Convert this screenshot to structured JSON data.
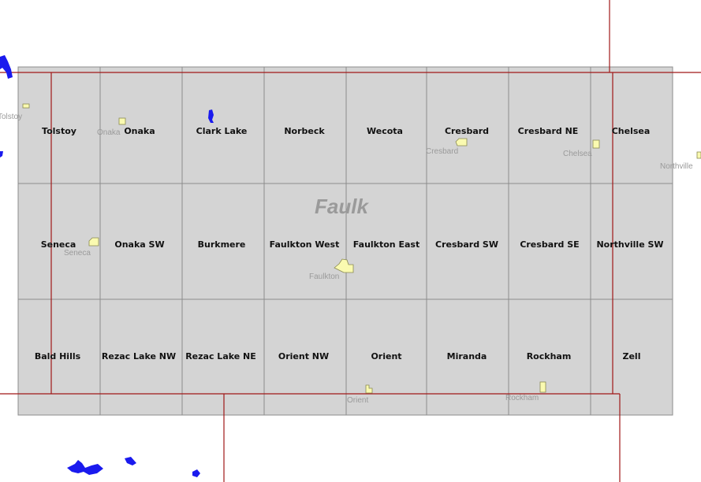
{
  "map": {
    "county_label": "Faulk",
    "colors": {
      "quad_fill": "#d4d4d4",
      "quad_border": "#8c8c8c",
      "boundary": "#a01818",
      "town_fill": "#fafab0",
      "water": "#1a1aee",
      "town_label": "#9a9a9a"
    },
    "quads": [
      {
        "id": "tolstoy",
        "label": "Tolstoy"
      },
      {
        "id": "onaka",
        "label": "Onaka"
      },
      {
        "id": "clark-lake",
        "label": "Clark Lake"
      },
      {
        "id": "norbeck",
        "label": "Norbeck"
      },
      {
        "id": "wecota",
        "label": "Wecota"
      },
      {
        "id": "cresbard",
        "label": "Cresbard"
      },
      {
        "id": "cresbard-ne",
        "label": "Cresbard NE"
      },
      {
        "id": "chelsea",
        "label": "Chelsea"
      },
      {
        "id": "seneca",
        "label": "Seneca"
      },
      {
        "id": "onaka-sw",
        "label": "Onaka SW"
      },
      {
        "id": "burkmere",
        "label": "Burkmere"
      },
      {
        "id": "faulkton-west",
        "label": "Faulkton West"
      },
      {
        "id": "faulkton-east",
        "label": "Faulkton East"
      },
      {
        "id": "cresbard-sw",
        "label": "Cresbard SW"
      },
      {
        "id": "cresbard-se",
        "label": "Cresbard SE"
      },
      {
        "id": "northville-sw",
        "label": "Northville SW"
      },
      {
        "id": "bald-hills",
        "label": "Bald Hills"
      },
      {
        "id": "rezac-lake-nw",
        "label": "Rezac Lake NW"
      },
      {
        "id": "rezac-lake-ne",
        "label": "Rezac Lake NE"
      },
      {
        "id": "orient-nw",
        "label": "Orient NW"
      },
      {
        "id": "orient",
        "label": "Orient"
      },
      {
        "id": "miranda",
        "label": "Miranda"
      },
      {
        "id": "rockham",
        "label": "Rockham"
      },
      {
        "id": "zell",
        "label": "Zell"
      }
    ],
    "towns": [
      {
        "id": "tolstoy",
        "label": "Tolstoy"
      },
      {
        "id": "onaka",
        "label": "Onaka"
      },
      {
        "id": "cresbard",
        "label": "Cresbard"
      },
      {
        "id": "chelsea",
        "label": "Chelsea"
      },
      {
        "id": "northville",
        "label": "Northville"
      },
      {
        "id": "seneca",
        "label": "Seneca"
      },
      {
        "id": "faulkton",
        "label": "Faulkton"
      },
      {
        "id": "orient",
        "label": "Orient"
      },
      {
        "id": "rockham",
        "label": "Rockham"
      }
    ]
  }
}
